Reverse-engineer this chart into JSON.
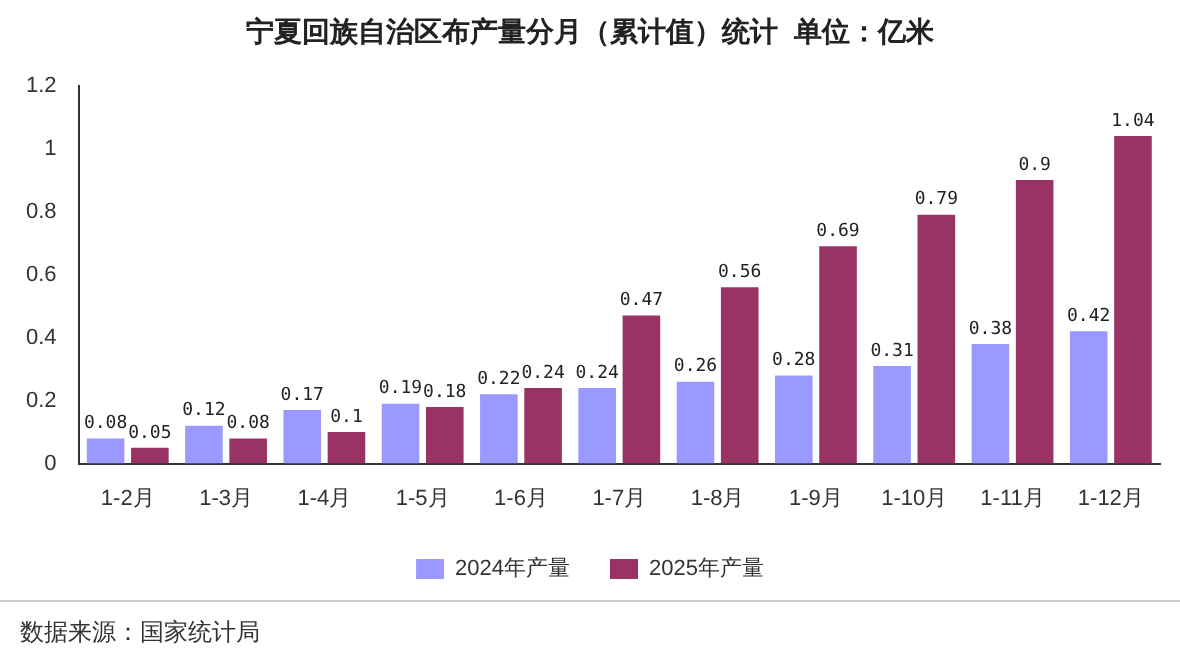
{
  "chart_data": {
    "type": "bar",
    "title": "宁夏回族自治区布产量分月（累计值）统计  单位：亿米",
    "categories": [
      "1-2月",
      "1-3月",
      "1-4月",
      "1-5月",
      "1-6月",
      "1-7月",
      "1-8月",
      "1-9月",
      "1-10月",
      "1-11月",
      "1-12月"
    ],
    "series": [
      {
        "name": "2024年产量",
        "color": "#9999ff",
        "values": [
          0.08,
          0.12,
          0.17,
          0.19,
          0.22,
          0.24,
          0.26,
          0.28,
          0.31,
          0.38,
          0.42
        ]
      },
      {
        "name": "2025年产量",
        "color": "#993366",
        "values": [
          0.05,
          0.08,
          0.1,
          0.18,
          0.24,
          0.47,
          0.56,
          0.69,
          0.79,
          0.9,
          1.04
        ]
      }
    ],
    "ylim": [
      0,
      1.2
    ],
    "yticks": [
      0,
      0.2,
      0.4,
      0.6,
      0.8,
      1,
      1.2
    ],
    "grid": false,
    "legend": "bottom",
    "data_labels": true,
    "annotations": [
      "数据来源：国家统计局"
    ]
  }
}
